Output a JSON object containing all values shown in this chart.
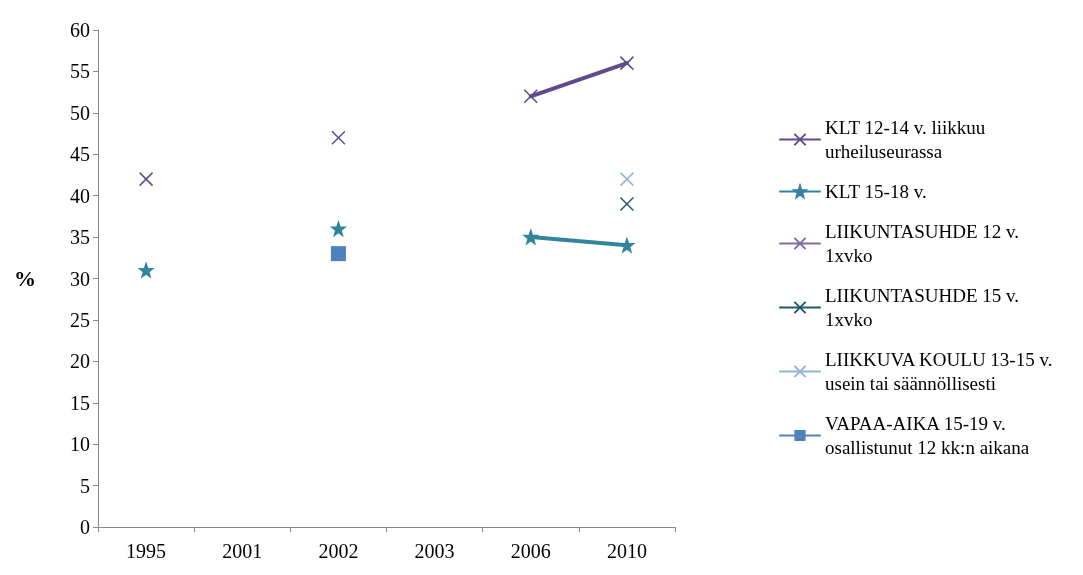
{
  "chart_data": {
    "type": "line",
    "ylabel": "%",
    "categories": [
      "1995",
      "2001",
      "2002",
      "2003",
      "2006",
      "2010"
    ],
    "ylim": [
      0,
      60
    ],
    "yticks": [
      0,
      5,
      10,
      15,
      20,
      25,
      30,
      35,
      40,
      45,
      50,
      55,
      60
    ],
    "grid": false,
    "legend": "right",
    "series": [
      {
        "name": "KLT 12-14 v. liikkuu urheiluseurassa",
        "color": "#5f4b8b",
        "marker": "cross",
        "values": [
          42,
          null,
          47,
          null,
          52,
          56
        ]
      },
      {
        "name": "KLT 15-18 v.",
        "color": "#31859c",
        "marker": "star",
        "values": [
          31,
          null,
          36,
          null,
          35,
          34
        ]
      },
      {
        "name": "LIIKUNTASUHDE 12 v. 1xvko",
        "color": "#7f6aa8",
        "marker": "cross",
        "values": [
          null,
          null,
          null,
          null,
          null,
          null
        ]
      },
      {
        "name": "LIIKUNTASUHDE 15 v. 1xvko",
        "color": "#215968",
        "marker": "cross",
        "values": [
          null,
          null,
          null,
          null,
          null,
          39
        ]
      },
      {
        "name": "LIIKKUVA KOULU 13-15 v. usein tai säännöllisesti",
        "color": "#95b3d7",
        "marker": "cross",
        "values": [
          null,
          null,
          null,
          null,
          null,
          42
        ]
      },
      {
        "name": "VAPAA-AIKA 15-19 v. osallistunut 12 kk:n aikana",
        "color": "#4f81bd",
        "marker": "square",
        "values": [
          null,
          null,
          33,
          null,
          null,
          null
        ]
      }
    ]
  }
}
